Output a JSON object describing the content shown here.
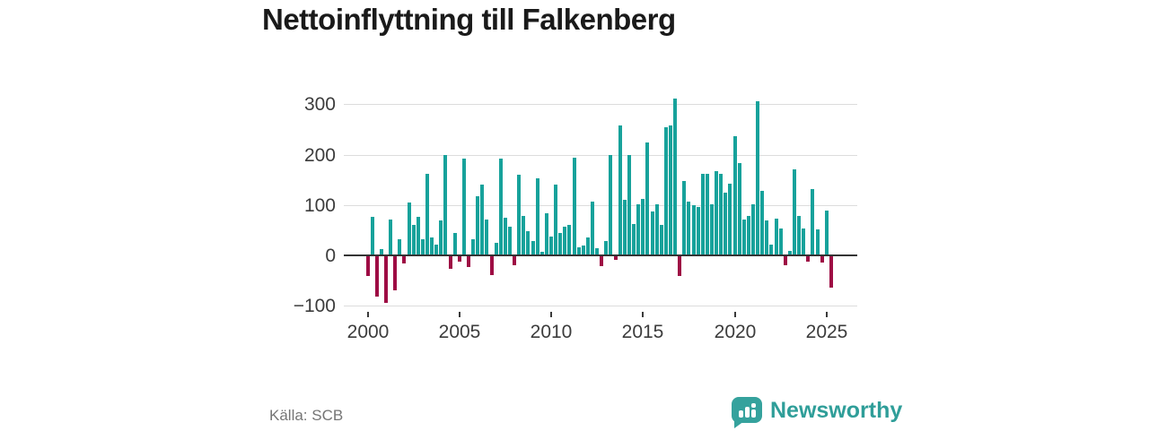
{
  "title": "Nettoinflyttning till Falkenberg",
  "source": "Källa: SCB",
  "branding": {
    "logo_text": "Newsworthy",
    "logo_icon": "speech-bubble-bar-chart-icon"
  },
  "colors": {
    "positive_bar": "#17a29b",
    "negative_bar": "#9e0c44",
    "grid": "#dcdcdc",
    "zero_line": "#343434",
    "axis_text": "#3c3c3c",
    "title_text": "#1a1a1a",
    "source_text": "#757575",
    "brand_teal": "#2f9e99",
    "background": "#ffffff"
  },
  "chart_data": {
    "type": "bar",
    "title": "Nettoinflyttning till Falkenberg",
    "xlabel": "",
    "ylabel": "",
    "grid": "horizontal",
    "legend": "none",
    "ylim": [
      -110,
      318
    ],
    "y_ticks": [
      {
        "label": "300",
        "value": 300
      },
      {
        "label": "200",
        "value": 200
      },
      {
        "label": "100",
        "value": 100
      },
      {
        "label": "0",
        "value": 0
      },
      {
        "label": "−100",
        "value": -100
      }
    ],
    "x_ticks": [
      {
        "label": "2000",
        "value": 2000
      },
      {
        "label": "2005",
        "value": 2005
      },
      {
        "label": "2010",
        "value": 2010
      },
      {
        "label": "2015",
        "value": 2015
      },
      {
        "label": "2020",
        "value": 2020
      },
      {
        "label": "2025",
        "value": 2025
      }
    ],
    "period": "quarterly",
    "years": [
      {
        "year": 2000,
        "values": [
          -40,
          75,
          -80,
          10
        ]
      },
      {
        "year": 2001,
        "values": [
          -93,
          70,
          -68,
          31
        ]
      },
      {
        "year": 2002,
        "values": [
          -15,
          103,
          58,
          75
        ]
      },
      {
        "year": 2003,
        "values": [
          30,
          160,
          34,
          20
        ]
      },
      {
        "year": 2004,
        "values": [
          67,
          198,
          -25,
          42
        ]
      },
      {
        "year": 2005,
        "values": [
          -10,
          191,
          -21,
          30
        ]
      },
      {
        "year": 2006,
        "values": [
          115,
          139,
          70,
          -38
        ]
      },
      {
        "year": 2007,
        "values": [
          24,
          190,
          73,
          55
        ]
      },
      {
        "year": 2008,
        "values": [
          -18,
          158,
          77,
          47
        ]
      },
      {
        "year": 2009,
        "values": [
          27,
          152,
          6,
          82
        ]
      },
      {
        "year": 2010,
        "values": [
          36,
          138,
          43,
          55
        ]
      },
      {
        "year": 2011,
        "values": [
          58,
          193,
          15,
          18
        ]
      },
      {
        "year": 2012,
        "values": [
          33,
          105,
          12,
          -20
        ]
      },
      {
        "year": 2013,
        "values": [
          27,
          197,
          -7,
          257
        ]
      },
      {
        "year": 2014,
        "values": [
          109,
          198,
          61,
          100
        ]
      },
      {
        "year": 2015,
        "values": [
          110,
          222,
          85,
          100
        ]
      },
      {
        "year": 2016,
        "values": [
          58,
          253,
          257,
          310
        ]
      },
      {
        "year": 2017,
        "values": [
          -40,
          146,
          105,
          98
        ]
      },
      {
        "year": 2018,
        "values": [
          95,
          161,
          160,
          100
        ]
      },
      {
        "year": 2019,
        "values": [
          165,
          160,
          122,
          141
        ]
      },
      {
        "year": 2020,
        "values": [
          235,
          182,
          70,
          76
        ]
      },
      {
        "year": 2021,
        "values": [
          100,
          305,
          127,
          68
        ]
      },
      {
        "year": 2022,
        "values": [
          20,
          71,
          52,
          -18
        ]
      },
      {
        "year": 2023,
        "values": [
          8,
          170,
          76,
          52
        ]
      },
      {
        "year": 2024,
        "values": [
          -10,
          130,
          50,
          -12
        ]
      },
      {
        "year": 2025,
        "values": [
          87,
          -62
        ]
      }
    ]
  }
}
